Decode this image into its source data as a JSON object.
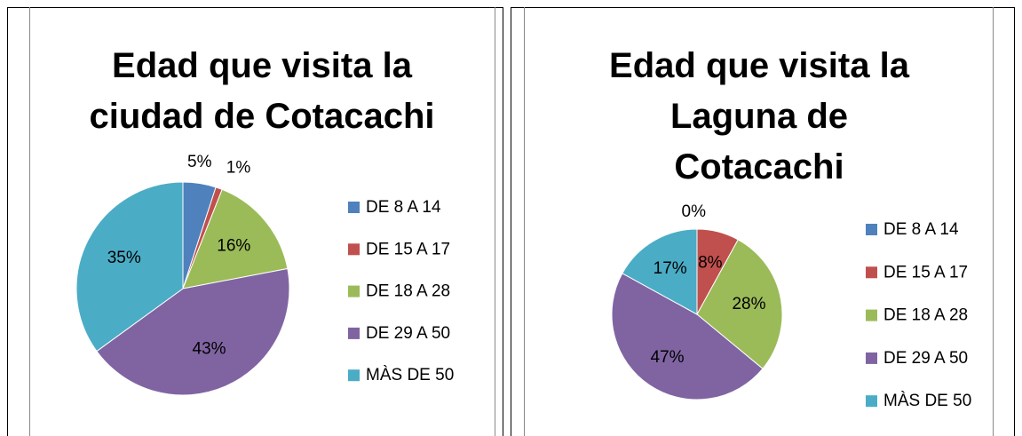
{
  "chart_data": [
    {
      "type": "pie",
      "title": "Edad que visita la ciudad de Cotacachi",
      "categories": [
        "DE 8 A 14",
        "DE 15 A 17",
        "DE 18 A 28",
        "DE 29 A 50",
        "MÀS DE 50"
      ],
      "values": [
        5,
        1,
        16,
        43,
        35
      ],
      "value_labels": [
        "5%",
        "1%",
        "16%",
        "43%",
        "35%"
      ],
      "colors": [
        "#4f81bd",
        "#c0504d",
        "#9bbb59",
        "#8064a2",
        "#4bacc6"
      ],
      "legend": "right"
    },
    {
      "type": "pie",
      "title": "Edad que visita la Laguna de Cotacachi",
      "categories": [
        "DE 8 A 14",
        "DE 15 A 17",
        "DE 18 A 28",
        "DE 29 A 50",
        "MÀS DE 50"
      ],
      "values": [
        0,
        8,
        28,
        47,
        17
      ],
      "value_labels": [
        "0%",
        "8%",
        "28%",
        "47%",
        "17%"
      ],
      "colors": [
        "#4f81bd",
        "#c0504d",
        "#9bbb59",
        "#8064a2",
        "#4bacc6"
      ],
      "legend": "right"
    }
  ]
}
